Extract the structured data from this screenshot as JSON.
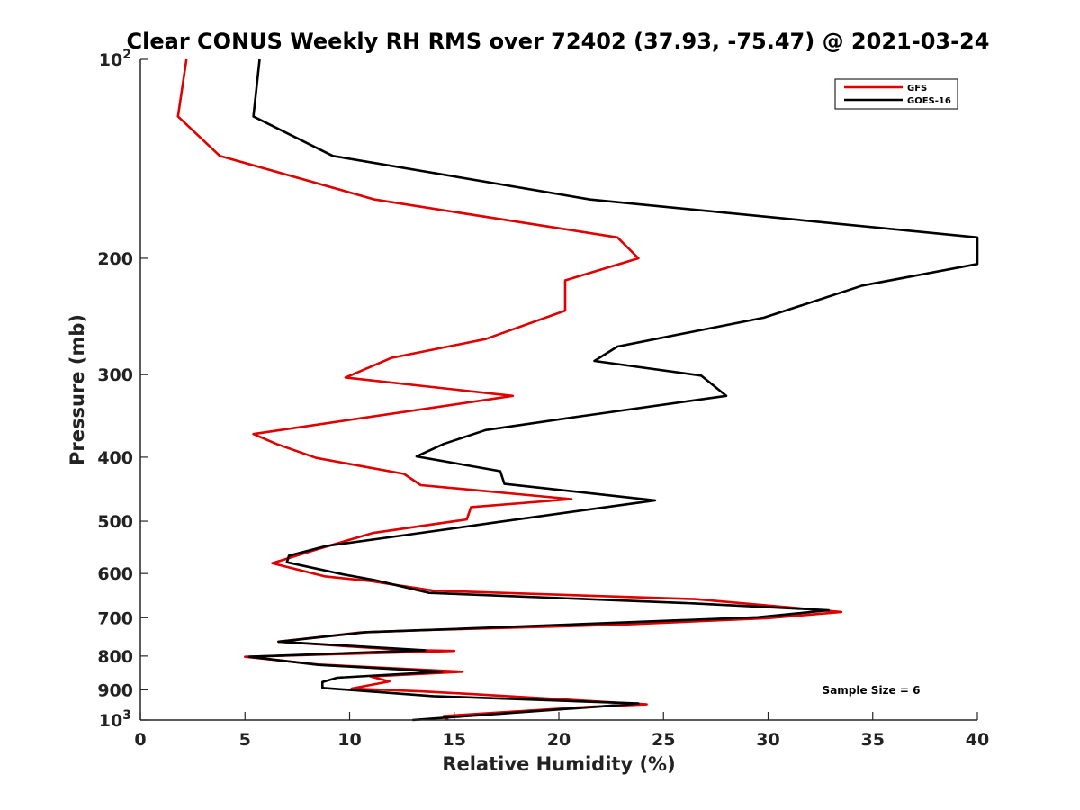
{
  "chart_data": {
    "type": "line",
    "title": "Clear CONUS Weekly RH RMS over 72402 (37.93, -75.47) @ 2021-03-24",
    "xlabel": "Relative Humidity (%)",
    "ylabel": "Pressure (mb)",
    "xlim": [
      0,
      40
    ],
    "ylim": [
      100,
      1000
    ],
    "yscale": "log",
    "y_reversed": true,
    "grid": false,
    "legend_position": "top-right",
    "x_ticks": [
      0,
      5,
      10,
      15,
      20,
      25,
      30,
      35,
      40
    ],
    "x_tick_labels": [
      "0",
      "5",
      "10",
      "15",
      "20",
      "25",
      "30",
      "35",
      "40"
    ],
    "y_ticks": [
      100,
      200,
      300,
      400,
      500,
      600,
      700,
      800,
      900,
      1000
    ],
    "y_tick_labels": [
      {
        "base": "10",
        "sup": "2"
      },
      {
        "base": "200",
        "sup": ""
      },
      {
        "base": "300",
        "sup": ""
      },
      {
        "base": "400",
        "sup": ""
      },
      {
        "base": "500",
        "sup": ""
      },
      {
        "base": "600",
        "sup": ""
      },
      {
        "base": "700",
        "sup": ""
      },
      {
        "base": "800",
        "sup": ""
      },
      {
        "base": "900",
        "sup": ""
      },
      {
        "base": "10",
        "sup": "3"
      }
    ],
    "annotation": "Sample Size = 6",
    "series": [
      {
        "name": "GFS",
        "color": "#e00000",
        "points": [
          [
            2.2,
            100
          ],
          [
            1.8,
            122
          ],
          [
            3.8,
            140
          ],
          [
            11.2,
            163
          ],
          [
            22.8,
            186
          ],
          [
            23.8,
            200
          ],
          [
            20.3,
            216
          ],
          [
            20.3,
            240
          ],
          [
            16.5,
            265
          ],
          [
            12.0,
            283
          ],
          [
            9.8,
            303
          ],
          [
            17.8,
            323
          ],
          [
            5.4,
            369
          ],
          [
            6.5,
            382
          ],
          [
            8.4,
            401
          ],
          [
            12.6,
            424
          ],
          [
            13.4,
            441
          ],
          [
            20.6,
            463
          ],
          [
            15.8,
            476
          ],
          [
            15.6,
            497
          ],
          [
            11.1,
            521
          ],
          [
            8.4,
            552
          ],
          [
            6.3,
            579
          ],
          [
            8.8,
            606
          ],
          [
            11.0,
            616
          ],
          [
            14.0,
            637
          ],
          [
            26.5,
            656
          ],
          [
            33.5,
            686
          ],
          [
            30.0,
            701
          ],
          [
            23.0,
            717
          ],
          [
            13.5,
            731
          ],
          [
            10.5,
            737
          ],
          [
            6.6,
            761
          ],
          [
            12.5,
            783
          ],
          [
            15.0,
            786
          ],
          [
            5.0,
            802
          ],
          [
            8.5,
            824
          ],
          [
            15.4,
            845
          ],
          [
            11.0,
            859
          ],
          [
            11.9,
            874
          ],
          [
            10.1,
            896
          ],
          [
            13.5,
            905
          ],
          [
            16.0,
            914
          ],
          [
            24.2,
            947
          ],
          [
            21.5,
            955
          ],
          [
            14.5,
            986
          ],
          [
            14.7,
            1000
          ]
        ]
      },
      {
        "name": "GOES-16",
        "color": "#000000",
        "points": [
          [
            5.7,
            100
          ],
          [
            5.4,
            122
          ],
          [
            9.2,
            140
          ],
          [
            21.5,
            163
          ],
          [
            40.0,
            186
          ],
          [
            40.0,
            204
          ],
          [
            34.5,
            220
          ],
          [
            29.8,
            246
          ],
          [
            22.8,
            272
          ],
          [
            21.7,
            286
          ],
          [
            26.8,
            301
          ],
          [
            28.0,
            323
          ],
          [
            21.0,
            347
          ],
          [
            16.5,
            364
          ],
          [
            14.5,
            382
          ],
          [
            13.2,
            399
          ],
          [
            17.2,
            420
          ],
          [
            17.4,
            439
          ],
          [
            24.6,
            465
          ],
          [
            17.0,
            502
          ],
          [
            13.0,
            523
          ],
          [
            8.9,
            545
          ],
          [
            7.1,
            564
          ],
          [
            7.0,
            577
          ],
          [
            9.7,
            602
          ],
          [
            11.2,
            614
          ],
          [
            13.8,
            642
          ],
          [
            26.5,
            666
          ],
          [
            32.9,
            682
          ],
          [
            29.5,
            699
          ],
          [
            13.6,
            731
          ],
          [
            10.8,
            736
          ],
          [
            6.6,
            761
          ],
          [
            13.6,
            784
          ],
          [
            5.2,
            802
          ],
          [
            8.5,
            825
          ],
          [
            14.4,
            845
          ],
          [
            9.4,
            863
          ],
          [
            8.7,
            876
          ],
          [
            8.7,
            894
          ],
          [
            14.0,
            920
          ],
          [
            23.8,
            944
          ],
          [
            21.8,
            955
          ],
          [
            13.0,
            1010
          ]
        ]
      }
    ]
  }
}
